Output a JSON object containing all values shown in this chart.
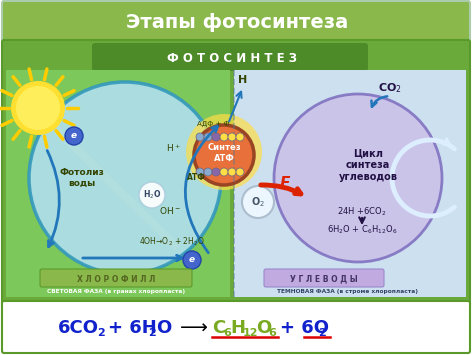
{
  "title": "Этапы фотосинтеза",
  "title_bg": "#8ab84a",
  "title_color": "#ffffff",
  "main_bg": "#6aaa3a",
  "header_text": "Ф О Т О С И Н Т Е З",
  "left_label": "СВЕТОВАЯ ФАЗА (в гранах хлоропласта)",
  "right_label": "ТЕМНОВАЯ ФАЗА (в строме хлоропласта)",
  "left_sub": "Х Л О Р О Ф И Л Л",
  "right_sub": "У Г Л Е В О Д Ы",
  "atf_label": "Синтез\nАТФ",
  "cycle_label": "Цикл\nсинтеза\nуглеводов",
  "fotoliz_label": "Фотолиз\nводы"
}
